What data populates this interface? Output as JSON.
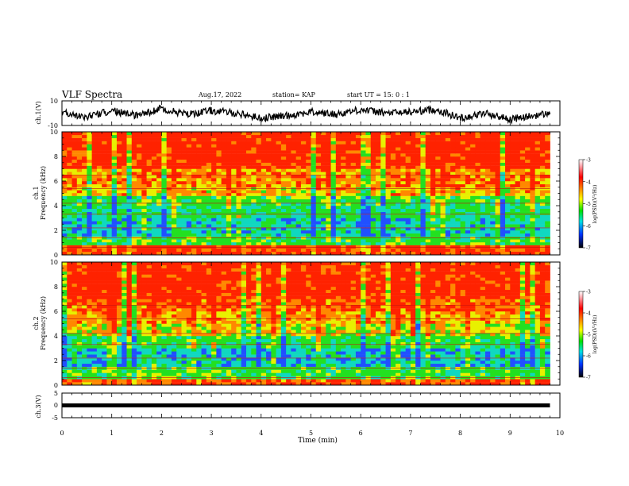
{
  "header": {
    "title": "VLF Spectra",
    "date": "Aug.17, 2022",
    "station": "station= KAP",
    "start": "start  UT =   15: 0  : 1"
  },
  "panels": {
    "ch1_wave_label": "ch.1(V)",
    "ch1_spec_label_line1": "ch.1",
    "ch1_spec_label_line2": "Frequency (kHz)",
    "ch2_spec_label_line1": "ch.2",
    "ch2_spec_label_line2": "Frequency (kHz)",
    "ch3_wave_label": "ch.3(V)",
    "x_axis_label": "Time  (min)",
    "colorbar_label": "log(PSD)(V²/Hz)"
  },
  "colors": {
    "wave": "#000000",
    "spectrogram_red": "#ff2200",
    "spectrogram_orange": "#ff8800",
    "spectrogram_yellow": "#e8f000",
    "spectrogram_green": "#22e020",
    "spectrogram_cyan": "#10d8c0",
    "spectrogram_blue": "#2050ff"
  },
  "chart_data": [
    {
      "type": "line",
      "name": "ch1-waveform",
      "ylabel": "ch.1(V)",
      "xlim": [
        0,
        10
      ],
      "ylim": [
        -10,
        10
      ],
      "y_ticks": [
        "10",
        "-10"
      ],
      "x_ticks": [
        "0",
        "1",
        "2",
        "3",
        "4",
        "5",
        "6",
        "7",
        "8",
        "9",
        "10"
      ],
      "x": [
        0,
        0.5,
        1.0,
        1.5,
        2.0,
        2.5,
        3.0,
        3.5,
        4.0,
        4.5,
        5.0,
        5.5,
        6.0,
        6.5,
        7.0,
        7.5,
        8.0,
        8.5,
        9.0,
        9.5,
        9.8
      ],
      "values": [
        1,
        -3,
        2,
        -2,
        4,
        -1,
        2,
        0,
        -4,
        -2,
        1,
        -1,
        3,
        0,
        1,
        3,
        -4,
        0,
        -5,
        -2,
        0
      ]
    },
    {
      "type": "heatmap",
      "name": "ch1-spectrogram",
      "ylabel": "Frequency (kHz)",
      "xlim": [
        0,
        10
      ],
      "ylim": [
        0,
        10
      ],
      "y_ticks": [
        "0",
        "2",
        "4",
        "6",
        "8",
        "10"
      ],
      "x_ticks": [
        "0",
        "1",
        "2",
        "3",
        "4",
        "5",
        "6",
        "7",
        "8",
        "9",
        "10"
      ],
      "data_end_min": 9.8,
      "colorbar": {
        "label": "log(PSD)(V²/Hz)",
        "ticks": [
          "-3",
          "-4",
          "-5",
          "-6",
          "-7"
        ],
        "range": [
          -7,
          -3
        ]
      },
      "frequency_bands_kHz": [
        0,
        0.8,
        1.5,
        3.0,
        4.0,
        4.8,
        5.5,
        7.0,
        10
      ],
      "band_mean_logPSD": [
        -3.6,
        -4.8,
        -5.3,
        -5.0,
        -4.8,
        -4.1,
        -3.9,
        -3.4
      ]
    },
    {
      "type": "heatmap",
      "name": "ch2-spectrogram",
      "ylabel": "Frequency (kHz)",
      "xlim": [
        0,
        10
      ],
      "ylim": [
        0,
        10
      ],
      "y_ticks": [
        "0",
        "2",
        "4",
        "6",
        "8",
        "10"
      ],
      "x_ticks": [
        "0",
        "1",
        "2",
        "3",
        "4",
        "5",
        "6",
        "7",
        "8",
        "9",
        "10"
      ],
      "data_end_min": 9.8,
      "colorbar": {
        "label": "log(PSD)(V²/Hz)",
        "ticks": [
          "-3",
          "-4",
          "-5",
          "-6",
          "-7"
        ],
        "range": [
          -7,
          -3
        ]
      },
      "frequency_bands_kHz": [
        0,
        0.5,
        1.5,
        3.0,
        4.0,
        5.0,
        6.0,
        7.0,
        10
      ],
      "band_mean_logPSD": [
        -3.7,
        -4.8,
        -5.4,
        -4.9,
        -4.3,
        -4.0,
        -3.7,
        -3.4
      ]
    },
    {
      "type": "line",
      "name": "ch3-waveform",
      "ylabel": "ch.3(V)",
      "xlabel": "Time  (min)",
      "xlim": [
        0,
        10
      ],
      "ylim": [
        -5,
        5
      ],
      "y_ticks": [
        "5",
        "0",
        "-5"
      ],
      "x_ticks": [
        "0",
        "1",
        "2",
        "3",
        "4",
        "5",
        "6",
        "7",
        "8",
        "9",
        "10"
      ],
      "x": [
        0,
        9.8
      ],
      "values": [
        0,
        0
      ]
    }
  ]
}
